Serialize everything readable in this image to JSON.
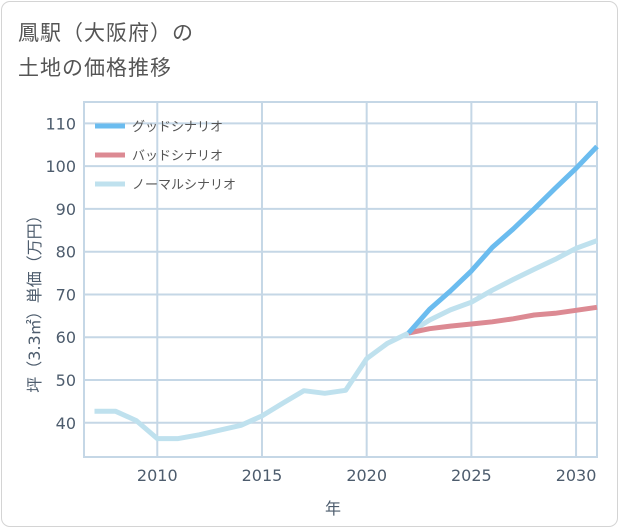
{
  "title": {
    "line1": "鳳駅（大阪府）の",
    "line2": "土地の価格推移"
  },
  "chart_data": {
    "type": "line",
    "xlabel": "年",
    "ylabel": "坪（3.3㎡）単価（万円）",
    "xlim": [
      2006.5,
      2031
    ],
    "ylim": [
      32,
      115
    ],
    "x_ticks": [
      2010,
      2015,
      2020,
      2025,
      2030
    ],
    "y_ticks": [
      40,
      50,
      60,
      70,
      80,
      90,
      100,
      110
    ],
    "x_tick_labels": [
      "2010",
      "2015",
      "2020",
      "2025",
      "2030"
    ],
    "y_tick_labels": [
      "40",
      "50",
      "60",
      "70",
      "80",
      "90",
      "100",
      "110"
    ],
    "grid": true,
    "legend_position": "top-left",
    "series": [
      {
        "name": "グッドシナリオ",
        "color": "#6bbcef",
        "x": [
          2022,
          2023,
          2024,
          2025,
          2026,
          2027,
          2028,
          2029,
          2030,
          2031
        ],
        "y": [
          61.0,
          66.5,
          70.8,
          75.5,
          81.0,
          85.3,
          90.0,
          94.8,
          99.5,
          104.6
        ]
      },
      {
        "name": "バッドシナリオ",
        "color": "#dc8a93",
        "x": [
          2022,
          2023,
          2024,
          2025,
          2026,
          2027,
          2028,
          2029,
          2030,
          2031
        ],
        "y": [
          61.0,
          62.0,
          62.6,
          63.1,
          63.6,
          64.3,
          65.2,
          65.6,
          66.3,
          67.0
        ]
      },
      {
        "name": "ノーマルシナリオ",
        "color": "#bfe1ee",
        "x": [
          2007,
          2008,
          2009,
          2010,
          2011,
          2012,
          2013,
          2014,
          2015,
          2016,
          2017,
          2018,
          2019,
          2020,
          2021,
          2022,
          2023,
          2024,
          2025,
          2026,
          2027,
          2028,
          2029,
          2030,
          2031
        ],
        "y": [
          42.7,
          42.7,
          40.5,
          36.3,
          36.3,
          37.2,
          38.3,
          39.4,
          41.6,
          44.6,
          47.5,
          46.9,
          47.6,
          55.0,
          58.6,
          61.0,
          64.0,
          66.4,
          68.2,
          71.0,
          73.5,
          75.9,
          78.2,
          80.8,
          82.6
        ]
      }
    ]
  }
}
